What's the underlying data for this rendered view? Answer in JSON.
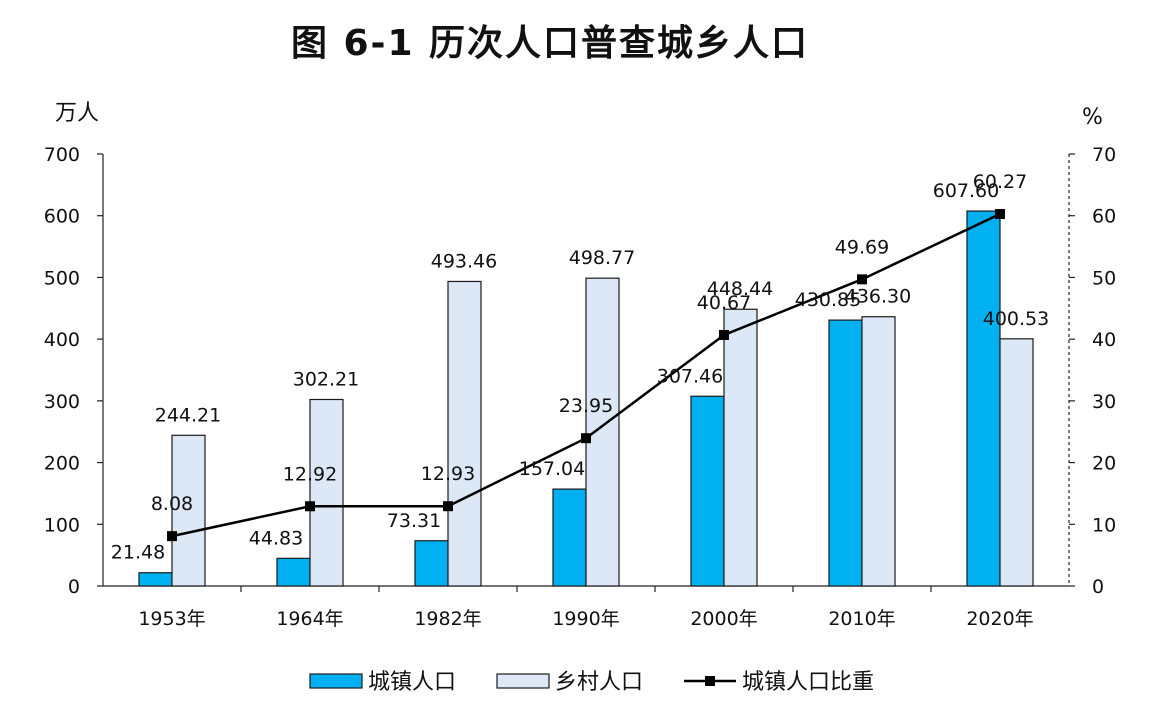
{
  "chart_data": {
    "type": "bar",
    "title": "图 6-1 历次人口普查城乡人口",
    "y_left_unit": "万人",
    "y_right_unit": "%",
    "categories": [
      "1953年",
      "1964年",
      "1982年",
      "1990年",
      "2000年",
      "2010年",
      "2020年"
    ],
    "ylim_left": [
      0,
      700
    ],
    "ylim_right": [
      0,
      70
    ],
    "yticks_left": [
      0,
      100,
      200,
      300,
      400,
      500,
      600,
      700
    ],
    "yticks_right": [
      0,
      10,
      20,
      30,
      40,
      50,
      60,
      70
    ],
    "series": [
      {
        "name": "城镇人口",
        "kind": "bar",
        "axis": "left",
        "color": "#00b0f0",
        "values": [
          21.48,
          44.83,
          73.31,
          157.04,
          307.46,
          430.85,
          607.6
        ],
        "labels": [
          "21.48",
          "44.83",
          "73.31",
          "157.04",
          "307.46",
          "430.85",
          "607.60"
        ]
      },
      {
        "name": "乡村人口",
        "kind": "bar",
        "axis": "left",
        "color": "#dce8f6",
        "values": [
          244.21,
          302.21,
          493.46,
          498.77,
          448.44,
          436.3,
          400.53
        ],
        "labels": [
          "244.21",
          "302.21",
          "493.46",
          "498.77",
          "448.44",
          "436.30",
          "400.53"
        ]
      },
      {
        "name": "城镇人口比重",
        "kind": "line",
        "axis": "right",
        "color": "#000000",
        "values": [
          8.08,
          12.92,
          12.93,
          23.95,
          40.67,
          49.69,
          60.27
        ],
        "labels": [
          "8.08",
          "12.92",
          "12.93",
          "23.95",
          "40.67",
          "49.69",
          "60.27"
        ]
      }
    ],
    "legend": [
      {
        "name": "城镇人口",
        "type": "bar",
        "color": "#00b0f0"
      },
      {
        "name": "乡村人口",
        "type": "bar",
        "color": "#dce8f6"
      },
      {
        "name": "城镇人口比重",
        "type": "line",
        "color": "#000000"
      }
    ],
    "legend_position": "bottom"
  }
}
